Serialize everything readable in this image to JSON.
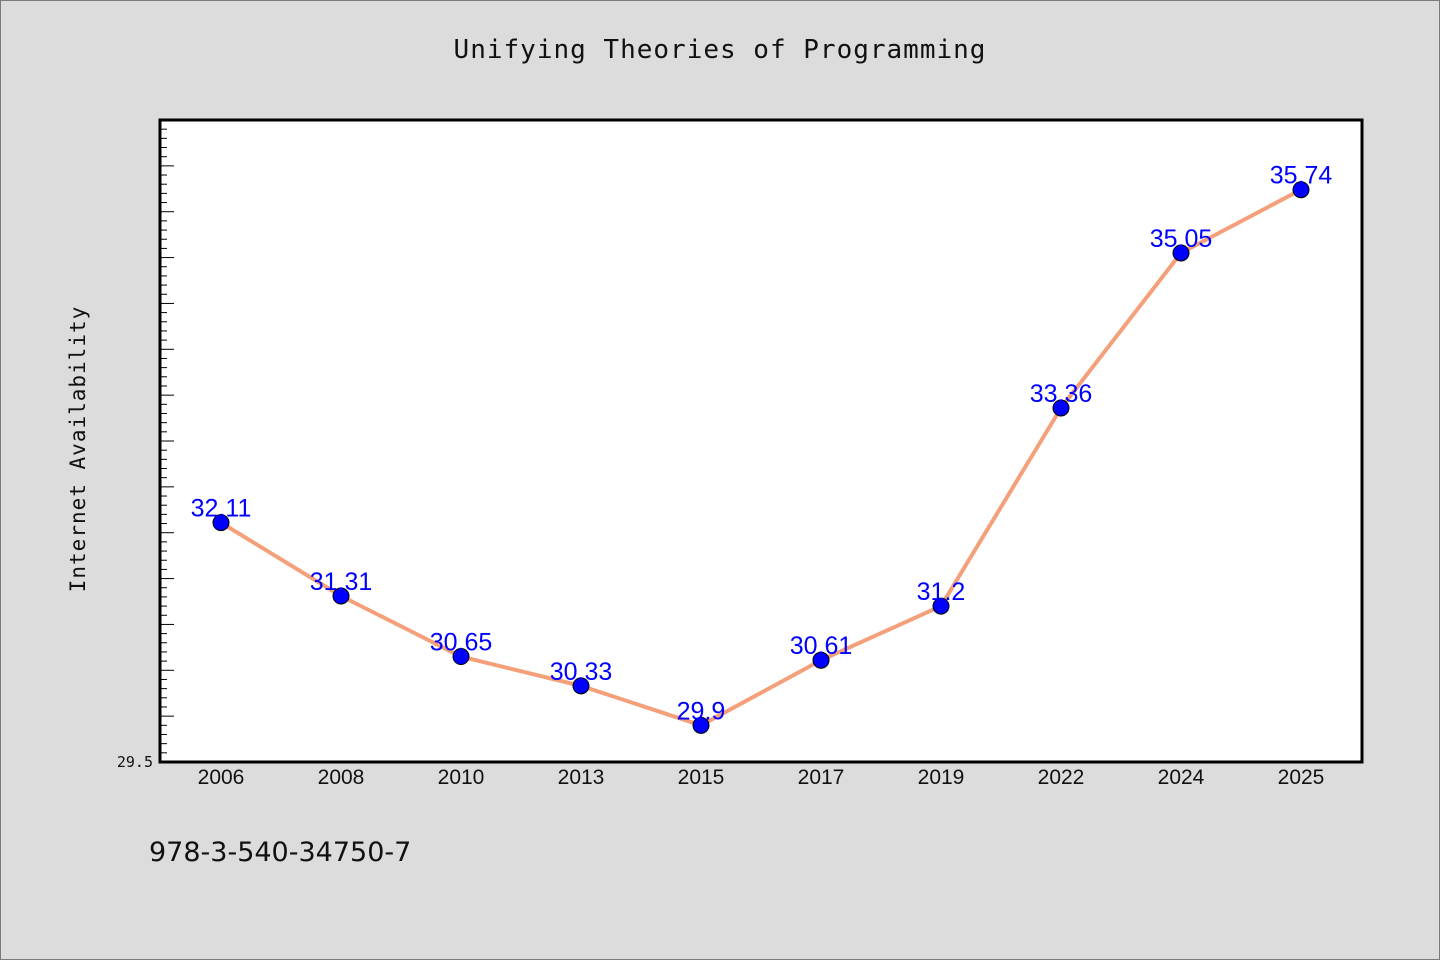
{
  "chart_data": {
    "type": "line",
    "title": "Unifying Theories of Programming",
    "xlabel": "",
    "ylabel": "Internet Availability",
    "categories": [
      "2006",
      "2008",
      "2010",
      "2013",
      "2015",
      "2017",
      "2019",
      "2022",
      "2024",
      "2025"
    ],
    "series": [
      {
        "values": [
          32.11,
          31.31,
          30.65,
          30.33,
          29.9,
          30.61,
          31.2,
          33.36,
          35.05,
          35.74
        ]
      }
    ],
    "data_labels": [
      "32.11",
      "31.31",
      "30.65",
      "30.33",
      "29.9",
      "30.61",
      "31.2",
      "33.36",
      "35.05",
      "35.74"
    ],
    "y_tick_labels": [
      "29.5"
    ],
    "ylim": [
      29.5,
      36.5
    ],
    "grid": false,
    "legend": "none",
    "line_color": "#f4a07a",
    "marker_color": "#0000ff",
    "label_color": "#0000ff",
    "plot_background": "#ffffff",
    "figure_background": "#dcdcdc"
  },
  "annotation": "978-3-540-34750-7"
}
